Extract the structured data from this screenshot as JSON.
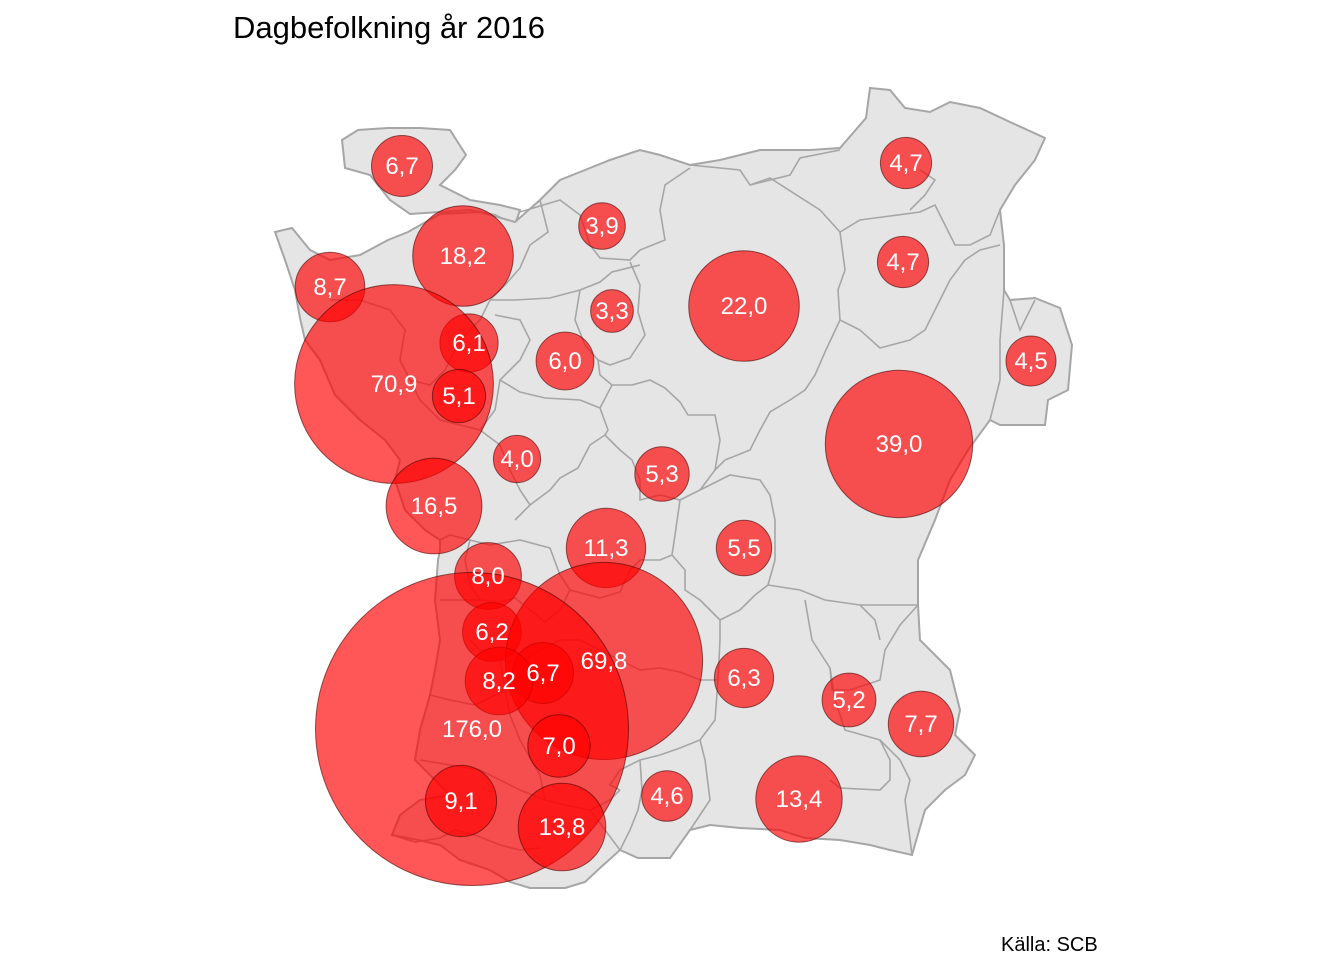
{
  "title": "Dagbefolkning år 2016",
  "source": "Källa: SCB",
  "colors": {
    "background": "#ffffff",
    "land": "#e5e5e5",
    "border": "#a6a6a6",
    "bubble": "#ff0000",
    "label": "#ffffff"
  },
  "bubbles": [
    {
      "label": "6,7",
      "value": 6.7
    },
    {
      "label": "4,7",
      "value": 4.7
    },
    {
      "label": "3,9",
      "value": 3.9
    },
    {
      "label": "18,2",
      "value": 18.2
    },
    {
      "label": "8,7",
      "value": 8.7
    },
    {
      "label": "4,7",
      "value": 4.7
    },
    {
      "label": "22,0",
      "value": 22.0
    },
    {
      "label": "3,3",
      "value": 3.3
    },
    {
      "label": "6,1",
      "value": 6.1
    },
    {
      "label": "6,0",
      "value": 6.0
    },
    {
      "label": "4,5",
      "value": 4.5
    },
    {
      "label": "70,9",
      "value": 70.9
    },
    {
      "label": "5,1",
      "value": 5.1
    },
    {
      "label": "39,0",
      "value": 39.0
    },
    {
      "label": "4,0",
      "value": 4.0
    },
    {
      "label": "5,3",
      "value": 5.3
    },
    {
      "label": "16,5",
      "value": 16.5
    },
    {
      "label": "11,3",
      "value": 11.3
    },
    {
      "label": "5,5",
      "value": 5.5
    },
    {
      "label": "8,0",
      "value": 8.0
    },
    {
      "label": "6,2",
      "value": 6.2
    },
    {
      "label": "69,8",
      "value": 69.8
    },
    {
      "label": "6,7",
      "value": 6.7
    },
    {
      "label": "8,2",
      "value": 8.2
    },
    {
      "label": "6,3",
      "value": 6.3
    },
    {
      "label": "5,2",
      "value": 5.2
    },
    {
      "label": "7,7",
      "value": 7.7
    },
    {
      "label": "176,0",
      "value": 176.0
    },
    {
      "label": "7,0",
      "value": 7.0
    },
    {
      "label": "9,1",
      "value": 9.1
    },
    {
      "label": "4,6",
      "value": 4.6
    },
    {
      "label": "13,4",
      "value": 13.4
    },
    {
      "label": "13,8",
      "value": 13.8
    }
  ]
}
